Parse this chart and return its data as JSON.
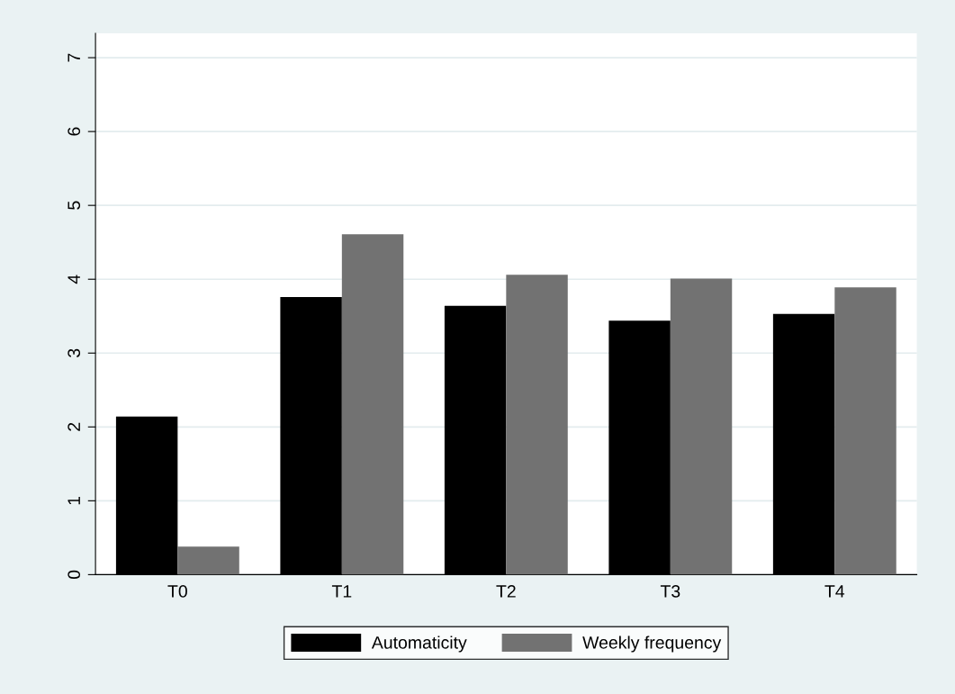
{
  "chart_data": {
    "type": "bar",
    "categories": [
      "T0",
      "T1",
      "T2",
      "T3",
      "T4"
    ],
    "series": [
      {
        "name": "Automaticity",
        "color": "#000000",
        "values": [
          2.14,
          3.76,
          3.64,
          3.44,
          3.53
        ]
      },
      {
        "name": "Weekly frequency",
        "color": "#727272",
        "values": [
          0.38,
          4.61,
          4.06,
          4.01,
          3.89
        ]
      }
    ],
    "ylim": [
      0,
      7.33
    ],
    "yticks": [
      0,
      1,
      2,
      3,
      4,
      5,
      6,
      7
    ],
    "grid": "y",
    "legend": "bottom"
  }
}
